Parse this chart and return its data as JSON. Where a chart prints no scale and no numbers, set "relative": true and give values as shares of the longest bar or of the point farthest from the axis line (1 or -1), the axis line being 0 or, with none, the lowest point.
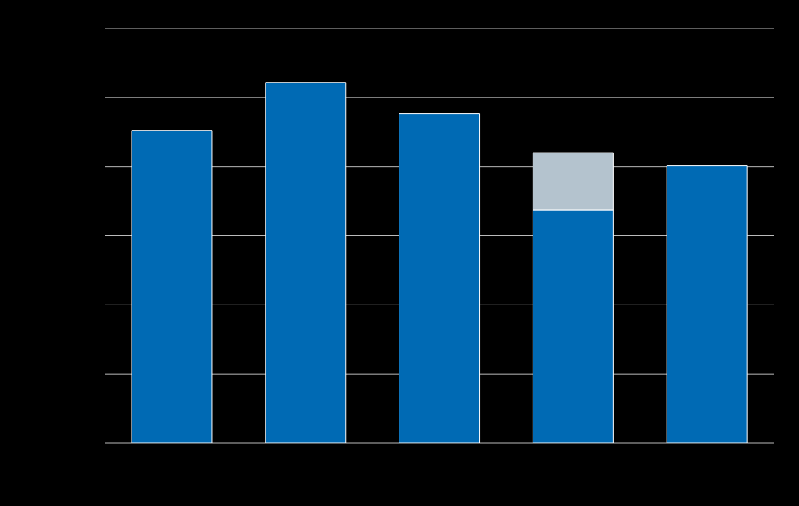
{
  "chart_data": {
    "type": "bar",
    "relative": true,
    "stacked": true,
    "grid": "y",
    "categories": [
      null,
      null,
      null,
      null,
      null
    ],
    "series": [
      {
        "color": "#006ab4",
        "values": [
          0.867,
          1,
          0.913,
          0.646,
          0.769
        ]
      },
      {
        "color": "#b4c3ce",
        "values": [
          null,
          null,
          null,
          0.159,
          null
        ]
      }
    ]
  }
}
